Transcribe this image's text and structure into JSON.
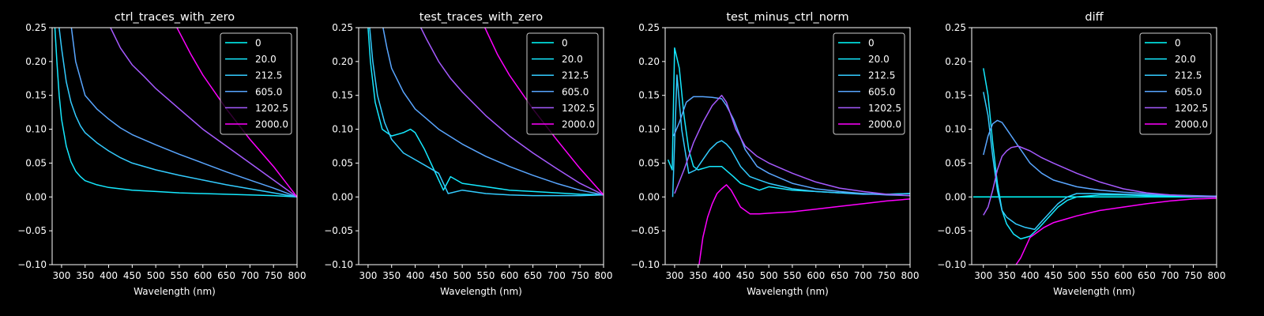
{
  "figure": {
    "background": "#000000",
    "foreground": "#ffffff"
  },
  "series_colors": {
    "0": "#00ffff",
    "20.0": "#15e9ff",
    "212.5": "#33ccff",
    "605.0": "#59a6ff",
    "1202.5": "#a65aff",
    "2000.0": "#ff00ff"
  },
  "chart_data": [
    {
      "type": "line",
      "title": "ctrl_traces_with_zero",
      "xlabel": "Wavelength (nm)",
      "ylabel": "",
      "xlim": [
        280,
        800
      ],
      "ylim": [
        -0.1,
        0.25
      ],
      "xticks": [
        "300",
        "350",
        "400",
        "450",
        "500",
        "550",
        "600",
        "650",
        "700",
        "750",
        "800"
      ],
      "yticks": [
        "−0.10",
        "−0.05",
        "0.00",
        "0.05",
        "0.10",
        "0.15",
        "0.20",
        "0.25"
      ],
      "legend_position": "top-right",
      "legend": [
        "0",
        "20.0",
        "212.5",
        "605.0",
        "1202.5",
        "2000.0"
      ],
      "series": [
        {
          "name": "0",
          "x": [],
          "y": []
        },
        {
          "name": "20.0",
          "x": [
            285,
            290,
            295,
            300,
            310,
            320,
            330,
            340,
            350,
            375,
            400,
            450,
            500,
            550,
            600,
            650,
            700,
            750,
            800
          ],
          "y": [
            0.26,
            0.2,
            0.15,
            0.115,
            0.075,
            0.052,
            0.038,
            0.03,
            0.024,
            0.018,
            0.014,
            0.01,
            0.008,
            0.006,
            0.005,
            0.004,
            0.003,
            0.002,
            0.0
          ]
        },
        {
          "name": "212.5",
          "x": [
            293,
            300,
            310,
            320,
            330,
            340,
            350,
            375,
            400,
            425,
            450,
            500,
            550,
            600,
            650,
            700,
            750,
            800
          ],
          "y": [
            0.26,
            0.22,
            0.17,
            0.14,
            0.12,
            0.105,
            0.095,
            0.08,
            0.068,
            0.058,
            0.05,
            0.04,
            0.032,
            0.025,
            0.018,
            0.012,
            0.006,
            0.0
          ]
        },
        {
          "name": "605.0",
          "x": [
            319,
            330,
            350,
            375,
            400,
            425,
            450,
            500,
            550,
            600,
            650,
            700,
            750,
            800
          ],
          "y": [
            0.26,
            0.2,
            0.15,
            0.13,
            0.115,
            0.102,
            0.092,
            0.077,
            0.063,
            0.05,
            0.037,
            0.025,
            0.013,
            0.0
          ]
        },
        {
          "name": "1202.5",
          "x": [
            404,
            425,
            450,
            475,
            500,
            550,
            600,
            650,
            700,
            750,
            800
          ],
          "y": [
            0.25,
            0.22,
            0.195,
            0.178,
            0.16,
            0.13,
            0.1,
            0.075,
            0.05,
            0.025,
            0.0
          ]
        },
        {
          "name": "2000.0",
          "x": [
            545,
            575,
            600,
            650,
            700,
            750,
            800
          ],
          "y": [
            0.25,
            0.21,
            0.18,
            0.13,
            0.085,
            0.045,
            0.0
          ]
        }
      ]
    },
    {
      "type": "line",
      "title": "test_traces_with_zero",
      "xlabel": "Wavelength (nm)",
      "ylabel": "",
      "xlim": [
        280,
        800
      ],
      "ylim": [
        -0.1,
        0.25
      ],
      "xticks": [
        "300",
        "350",
        "400",
        "450",
        "500",
        "550",
        "600",
        "650",
        "700",
        "750",
        "800"
      ],
      "yticks": [
        "−0.10",
        "−0.05",
        "0.00",
        "0.05",
        "0.10",
        "0.15",
        "0.20",
        "0.25"
      ],
      "legend_position": "top-right",
      "legend": [
        "0",
        "20.0",
        "212.5",
        "605.0",
        "1202.5",
        "2000.0"
      ],
      "series": [
        {
          "name": "0",
          "x": [],
          "y": []
        },
        {
          "name": "20.0",
          "x": [
            299,
            305,
            315,
            330,
            350,
            375,
            390,
            400,
            420,
            440,
            460,
            475,
            500,
            550,
            600,
            650,
            700,
            750,
            800
          ],
          "y": [
            0.26,
            0.2,
            0.14,
            0.1,
            0.09,
            0.095,
            0.1,
            0.095,
            0.07,
            0.04,
            0.01,
            0.03,
            0.02,
            0.015,
            0.01,
            0.008,
            0.006,
            0.004,
            0.003
          ]
        },
        {
          "name": "212.5",
          "x": [
            302,
            310,
            320,
            335,
            350,
            375,
            400,
            425,
            450,
            470,
            500,
            550,
            600,
            650,
            700,
            750,
            800
          ],
          "y": [
            0.26,
            0.2,
            0.15,
            0.11,
            0.085,
            0.065,
            0.055,
            0.045,
            0.035,
            0.005,
            0.01,
            0.005,
            0.003,
            0.002,
            0.002,
            0.002,
            0.003
          ]
        },
        {
          "name": "605.0",
          "x": [
            329,
            340,
            350,
            375,
            400,
            425,
            450,
            500,
            550,
            600,
            650,
            700,
            750,
            800
          ],
          "y": [
            0.26,
            0.22,
            0.19,
            0.155,
            0.13,
            0.115,
            0.1,
            0.078,
            0.06,
            0.045,
            0.032,
            0.02,
            0.01,
            0.003
          ]
        },
        {
          "name": "1202.5",
          "x": [
            412,
            425,
            450,
            475,
            500,
            550,
            600,
            650,
            700,
            750,
            800
          ],
          "y": [
            0.25,
            0.232,
            0.2,
            0.175,
            0.155,
            0.12,
            0.09,
            0.065,
            0.042,
            0.02,
            0.003
          ]
        },
        {
          "name": "2000.0",
          "x": [
            548,
            575,
            600,
            650,
            700,
            750,
            800
          ],
          "y": [
            0.25,
            0.21,
            0.18,
            0.13,
            0.085,
            0.042,
            0.003
          ]
        }
      ]
    },
    {
      "type": "line",
      "title": "test_minus_ctrl_norm",
      "xlabel": "Wavelength (nm)",
      "ylabel": "",
      "xlim": [
        280,
        800
      ],
      "ylim": [
        -0.1,
        0.25
      ],
      "xticks": [
        "300",
        "350",
        "400",
        "450",
        "500",
        "550",
        "600",
        "650",
        "700",
        "750",
        "800"
      ],
      "yticks": [
        "−0.10",
        "−0.05",
        "0.00",
        "0.05",
        "0.10",
        "0.15",
        "0.20",
        "0.25"
      ],
      "legend_position": "top-right",
      "legend": [
        "0",
        "20.0",
        "212.5",
        "605.0",
        "1202.5",
        "2000.0"
      ],
      "series": [
        {
          "name": "0",
          "x": [],
          "y": []
        },
        {
          "name": "20.0",
          "x": [
            286,
            295,
            300,
            310,
            320,
            330,
            340,
            350,
            375,
            400,
            425,
            440,
            460,
            480,
            500,
            550,
            600,
            650,
            700,
            750,
            800
          ],
          "y": [
            0.055,
            0.04,
            0.22,
            0.19,
            0.12,
            0.07,
            0.045,
            0.04,
            0.045,
            0.045,
            0.03,
            0.02,
            0.015,
            0.01,
            0.015,
            0.01,
            0.008,
            0.006,
            0.005,
            0.004,
            0.005
          ]
        },
        {
          "name": "212.5",
          "x": [
            296,
            305,
            315,
            330,
            345,
            360,
            375,
            390,
            400,
            410,
            420,
            440,
            460,
            480,
            500,
            550,
            600,
            650,
            700,
            750,
            800
          ],
          "y": [
            0.0,
            0.18,
            0.1,
            0.035,
            0.04,
            0.055,
            0.07,
            0.08,
            0.083,
            0.078,
            0.07,
            0.045,
            0.03,
            0.025,
            0.02,
            0.012,
            0.008,
            0.006,
            0.004,
            0.004,
            0.005
          ]
        },
        {
          "name": "605.0",
          "x": [
            298,
            310,
            325,
            340,
            360,
            380,
            400,
            410,
            425,
            450,
            475,
            500,
            550,
            600,
            650,
            700,
            750,
            800
          ],
          "y": [
            0.09,
            0.11,
            0.14,
            0.148,
            0.148,
            0.147,
            0.145,
            0.135,
            0.115,
            0.07,
            0.045,
            0.035,
            0.02,
            0.012,
            0.008,
            0.005,
            0.003,
            0.002
          ]
        },
        {
          "name": "1202.5",
          "x": [
            300,
            320,
            340,
            360,
            380,
            400,
            410,
            430,
            450,
            475,
            500,
            550,
            600,
            650,
            700,
            750,
            800
          ],
          "y": [
            0.005,
            0.04,
            0.08,
            0.11,
            0.135,
            0.15,
            0.14,
            0.1,
            0.075,
            0.06,
            0.05,
            0.035,
            0.022,
            0.013,
            0.008,
            0.004,
            0.002
          ]
        },
        {
          "name": "2000.0",
          "x": [
            352,
            360,
            370,
            380,
            390,
            400,
            410,
            420,
            440,
            460,
            480,
            500,
            550,
            600,
            650,
            700,
            750,
            800
          ],
          "y": [
            -0.1,
            -0.06,
            -0.03,
            -0.01,
            0.005,
            0.012,
            0.018,
            0.01,
            -0.015,
            -0.025,
            -0.025,
            -0.024,
            -0.022,
            -0.018,
            -0.014,
            -0.01,
            -0.006,
            -0.003
          ]
        }
      ]
    },
    {
      "type": "line",
      "title": "diff",
      "xlabel": "Wavelength (nm)",
      "ylabel": "",
      "xlim": [
        275,
        800
      ],
      "ylim": [
        -0.1,
        0.25
      ],
      "xticks": [
        "300",
        "350",
        "400",
        "450",
        "500",
        "550",
        "600",
        "650",
        "700",
        "750",
        "800"
      ],
      "yticks": [
        "−0.10",
        "−0.05",
        "0.00",
        "0.05",
        "0.10",
        "0.15",
        "0.20",
        "0.25"
      ],
      "legend_position": "top-right",
      "legend": [
        "0",
        "20.0",
        "212.5",
        "605.0",
        "1202.5",
        "2000.0"
      ],
      "series": [
        {
          "name": "0",
          "x": [
            278,
            800
          ],
          "y": [
            0.0,
            0.0
          ]
        },
        {
          "name": "20.0",
          "x": [
            300,
            310,
            320,
            330,
            340,
            350,
            365,
            380,
            400,
            420,
            440,
            460,
            480,
            500,
            550,
            600,
            650,
            700,
            750,
            800
          ],
          "y": [
            0.19,
            0.15,
            0.08,
            0.02,
            -0.02,
            -0.04,
            -0.055,
            -0.062,
            -0.058,
            -0.045,
            -0.03,
            -0.015,
            -0.005,
            0.0,
            0.003,
            0.003,
            0.002,
            0.002,
            0.001,
            0.001
          ]
        },
        {
          "name": "212.5",
          "x": [
            300,
            310,
            320,
            330,
            340,
            350,
            370,
            390,
            410,
            420,
            440,
            460,
            480,
            500,
            550,
            600,
            650,
            700,
            750,
            800
          ],
          "y": [
            0.155,
            0.12,
            0.06,
            0.01,
            -0.02,
            -0.03,
            -0.04,
            -0.045,
            -0.048,
            -0.04,
            -0.025,
            -0.01,
            0.0,
            0.005,
            0.005,
            0.004,
            0.003,
            0.002,
            0.001,
            0.001
          ]
        },
        {
          "name": "605.0",
          "x": [
            300,
            310,
            320,
            330,
            340,
            350,
            375,
            400,
            425,
            450,
            500,
            550,
            600,
            650,
            700,
            750,
            800
          ],
          "y": [
            0.062,
            0.09,
            0.108,
            0.113,
            0.11,
            0.1,
            0.075,
            0.05,
            0.035,
            0.025,
            0.015,
            0.01,
            0.007,
            0.005,
            0.003,
            0.002,
            0.001
          ]
        },
        {
          "name": "1202.5",
          "x": [
            300,
            310,
            320,
            330,
            340,
            350,
            360,
            375,
            400,
            425,
            450,
            500,
            550,
            600,
            650,
            700,
            750,
            800
          ],
          "y": [
            -0.027,
            -0.015,
            0.01,
            0.04,
            0.06,
            0.068,
            0.073,
            0.075,
            0.068,
            0.058,
            0.05,
            0.035,
            0.022,
            0.012,
            0.006,
            0.003,
            0.001,
            0.0
          ]
        },
        {
          "name": "2000.0",
          "x": [
            370,
            380,
            390,
            400,
            410,
            430,
            450,
            475,
            500,
            550,
            600,
            650,
            700,
            750,
            800
          ],
          "y": [
            -0.1,
            -0.09,
            -0.075,
            -0.06,
            -0.055,
            -0.045,
            -0.038,
            -0.033,
            -0.028,
            -0.02,
            -0.015,
            -0.01,
            -0.006,
            -0.003,
            -0.002
          ]
        }
      ]
    }
  ]
}
